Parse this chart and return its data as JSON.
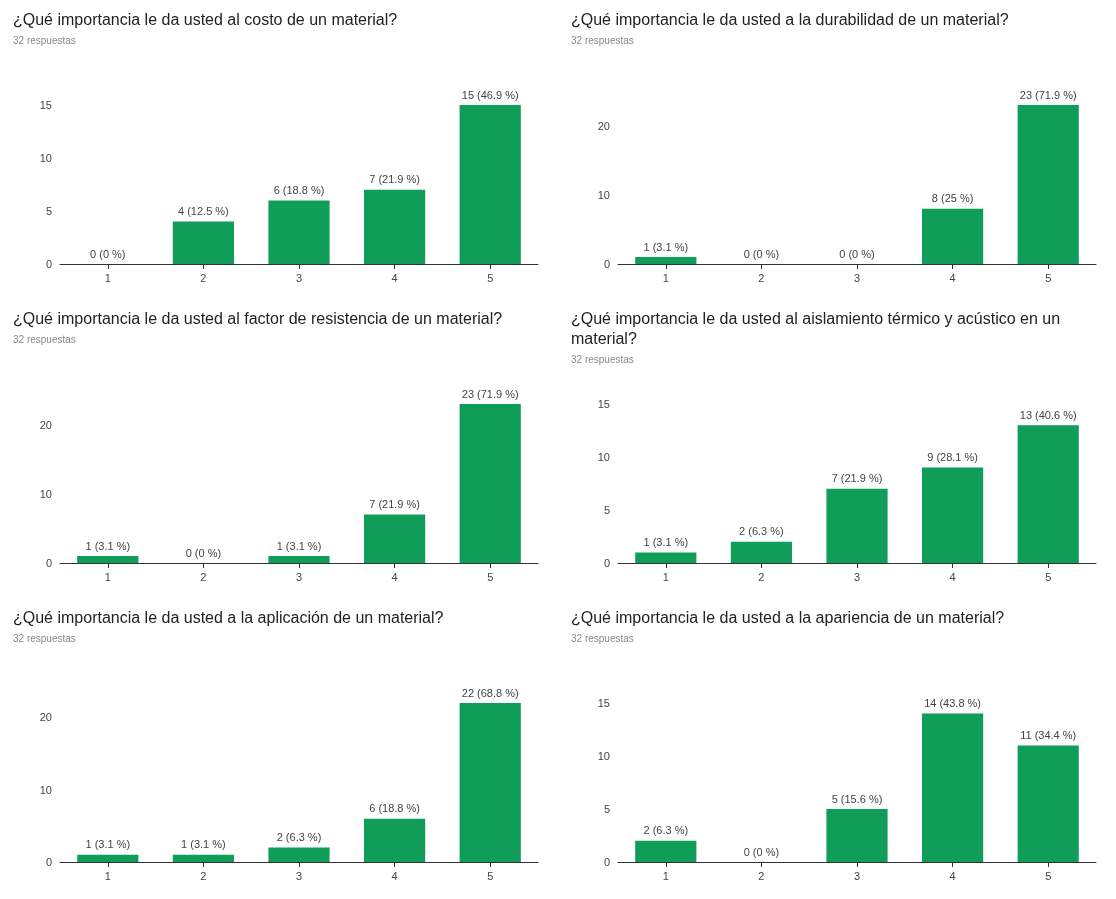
{
  "chart_data": [
    {
      "type": "bar",
      "title": "¿Qué importancia le da usted al costo de un material?",
      "subtitle": "32 respuestas",
      "categories": [
        "1",
        "2",
        "3",
        "4",
        "5"
      ],
      "values": [
        0,
        4,
        6,
        7,
        15
      ],
      "value_labels": [
        "0 (0 %)",
        "4 (12.5 %)",
        "6 (18.8 %)",
        "7 (21.9 %)",
        "15 (46.9 %)"
      ],
      "color": "#0f9d58",
      "ylim": [
        0,
        15
      ],
      "yticks": [
        0,
        5,
        10,
        15
      ]
    },
    {
      "type": "bar",
      "title": "¿Qué importancia le da usted a la durabilidad de un material?",
      "subtitle": "32 respuestas",
      "categories": [
        "1",
        "2",
        "3",
        "4",
        "5"
      ],
      "values": [
        1,
        0,
        0,
        8,
        23
      ],
      "value_labels": [
        "1 (3.1 %)",
        "0 (0 %)",
        "0 (0 %)",
        "8 (25 %)",
        "23 (71.9 %)"
      ],
      "color": "#0f9d58",
      "ylim": [
        0,
        23
      ],
      "yticks": [
        0,
        10,
        20
      ]
    },
    {
      "type": "bar",
      "title": "¿Qué importancia le da usted al factor de resistencia de un material?",
      "subtitle": "32 respuestas",
      "categories": [
        "1",
        "2",
        "3",
        "4",
        "5"
      ],
      "values": [
        1,
        0,
        1,
        7,
        23
      ],
      "value_labels": [
        "1 (3.1 %)",
        "0 (0 %)",
        "1 (3.1 %)",
        "7 (21.9 %)",
        "23 (71.9 %)"
      ],
      "color": "#0f9d58",
      "ylim": [
        0,
        23
      ],
      "yticks": [
        0,
        10,
        20
      ]
    },
    {
      "type": "bar",
      "title": "¿Qué importancia le da usted al aislamiento térmico y acústico en un material?",
      "subtitle": "32 respuestas",
      "categories": [
        "1",
        "2",
        "3",
        "4",
        "5"
      ],
      "values": [
        1,
        2,
        7,
        9,
        13
      ],
      "value_labels": [
        "1 (3.1 %)",
        "2 (6.3 %)",
        "7 (21.9 %)",
        "9 (28.1 %)",
        "13 (40.6 %)"
      ],
      "color": "#0f9d58",
      "ylim": [
        0,
        15
      ],
      "yticks": [
        0,
        5,
        10,
        15
      ]
    },
    {
      "type": "bar",
      "title": "¿Qué importancia le da usted a la aplicación de un material?",
      "subtitle": "32 respuestas",
      "categories": [
        "1",
        "2",
        "3",
        "4",
        "5"
      ],
      "values": [
        1,
        1,
        2,
        6,
        22
      ],
      "value_labels": [
        "1 (3.1 %)",
        "1 (3.1 %)",
        "2 (6.3 %)",
        "6 (18.8 %)",
        "22 (68.8 %)"
      ],
      "color": "#0f9d58",
      "ylim": [
        0,
        22
      ],
      "yticks": [
        0,
        10,
        20
      ]
    },
    {
      "type": "bar",
      "title": "¿Qué importancia le da usted a la apariencia de un material?",
      "subtitle": "32 respuestas",
      "categories": [
        "1",
        "2",
        "3",
        "4",
        "5"
      ],
      "values": [
        2,
        0,
        5,
        14,
        11
      ],
      "value_labels": [
        "2 (6.3 %)",
        "0 (0 %)",
        "5 (15.6 %)",
        "14 (43.8 %)",
        "11 (34.4 %)"
      ],
      "color": "#0f9d58",
      "ylim": [
        0,
        15
      ],
      "yticks": [
        0,
        5,
        10,
        15
      ]
    }
  ]
}
